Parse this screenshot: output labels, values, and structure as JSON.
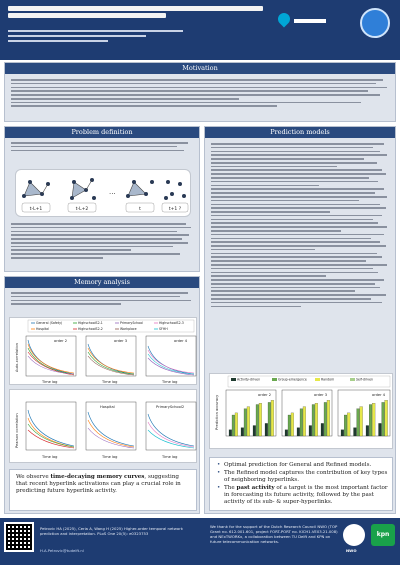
{
  "sections": {
    "motivation": "Motivation",
    "problem_definition": "Problem definition",
    "prediction_models": "Prediction models",
    "memory_analysis": "Memory analysis"
  },
  "problem_fig": {
    "labels": [
      "t-L+1",
      "t-L+2",
      "t",
      "t+1 ?"
    ],
    "ellipsis": "..."
  },
  "memory_fig1": {
    "legend": [
      "General (Safety)",
      "Hospital",
      "HighschoolS2-1",
      "HighschoolS2-2",
      "PrimarySchool",
      "Workplace",
      "HighschoolS2-3",
      "SFHH"
    ],
    "panels": [
      "order 2",
      "order 3",
      "order 4"
    ],
    "xlabel": "Time lag",
    "ylabel": "Auto-correlation"
  },
  "memory_fig2": {
    "panels": [
      "Hospital",
      "PrimarySchool2"
    ],
    "xlabel": "Time lag",
    "ylabel": "Pearson correlation"
  },
  "prediction_fig": {
    "legend": [
      "Activity-driven",
      "Group-emergence",
      "Random",
      "Self-driven"
    ],
    "panels": [
      "order 2",
      "order 3",
      "order 4"
    ],
    "ylabel": "Prediction accuracy"
  },
  "memory_note": {
    "prefix": "We observe ",
    "emph": "time-decaying memory curves",
    "suffix": ", suggesting that recent hyperlink activations can play a crucial role in predicting future hyperlink activity."
  },
  "conclusions": [
    {
      "text": "Optimal prediction for General and Refined models."
    },
    {
      "text": "The Refined model captures the contribution of key types of neighboring hyperlinks."
    },
    {
      "prefix": "The ",
      "emph": "past activity",
      "suffix": " of a target is the most important factor in forecasting its future activity, followed by the past activity of its sub- & super-hyperlinks."
    }
  ],
  "footer": {
    "ref": "Petrovic HA (2025), Ceria A, Wang H (2025) Higher-order temporal network prediction and interpretation. PLoS One 20(5): e0323753",
    "email": "H.A.Petrovic@tudelft.nl",
    "ack": "We thank for the support of the Dutch Research Council NWO (TOP Grant no. 612.001.601, project FORT-PORT no. KICH1.VE03.21.008) and NExTWORKx, a collaboration between TU Delft and KPN on future telecommunication networks.",
    "kpn": "kpn",
    "nwo": "NWO"
  },
  "colors": {
    "header": "#1e3c72",
    "panel_title": "#2a4a7f",
    "panel_bg": "#dfe4ec",
    "bar_dark": "#1f3b2f",
    "bar_mid": "#6aa84f",
    "bar_light": "#e6e84a"
  }
}
